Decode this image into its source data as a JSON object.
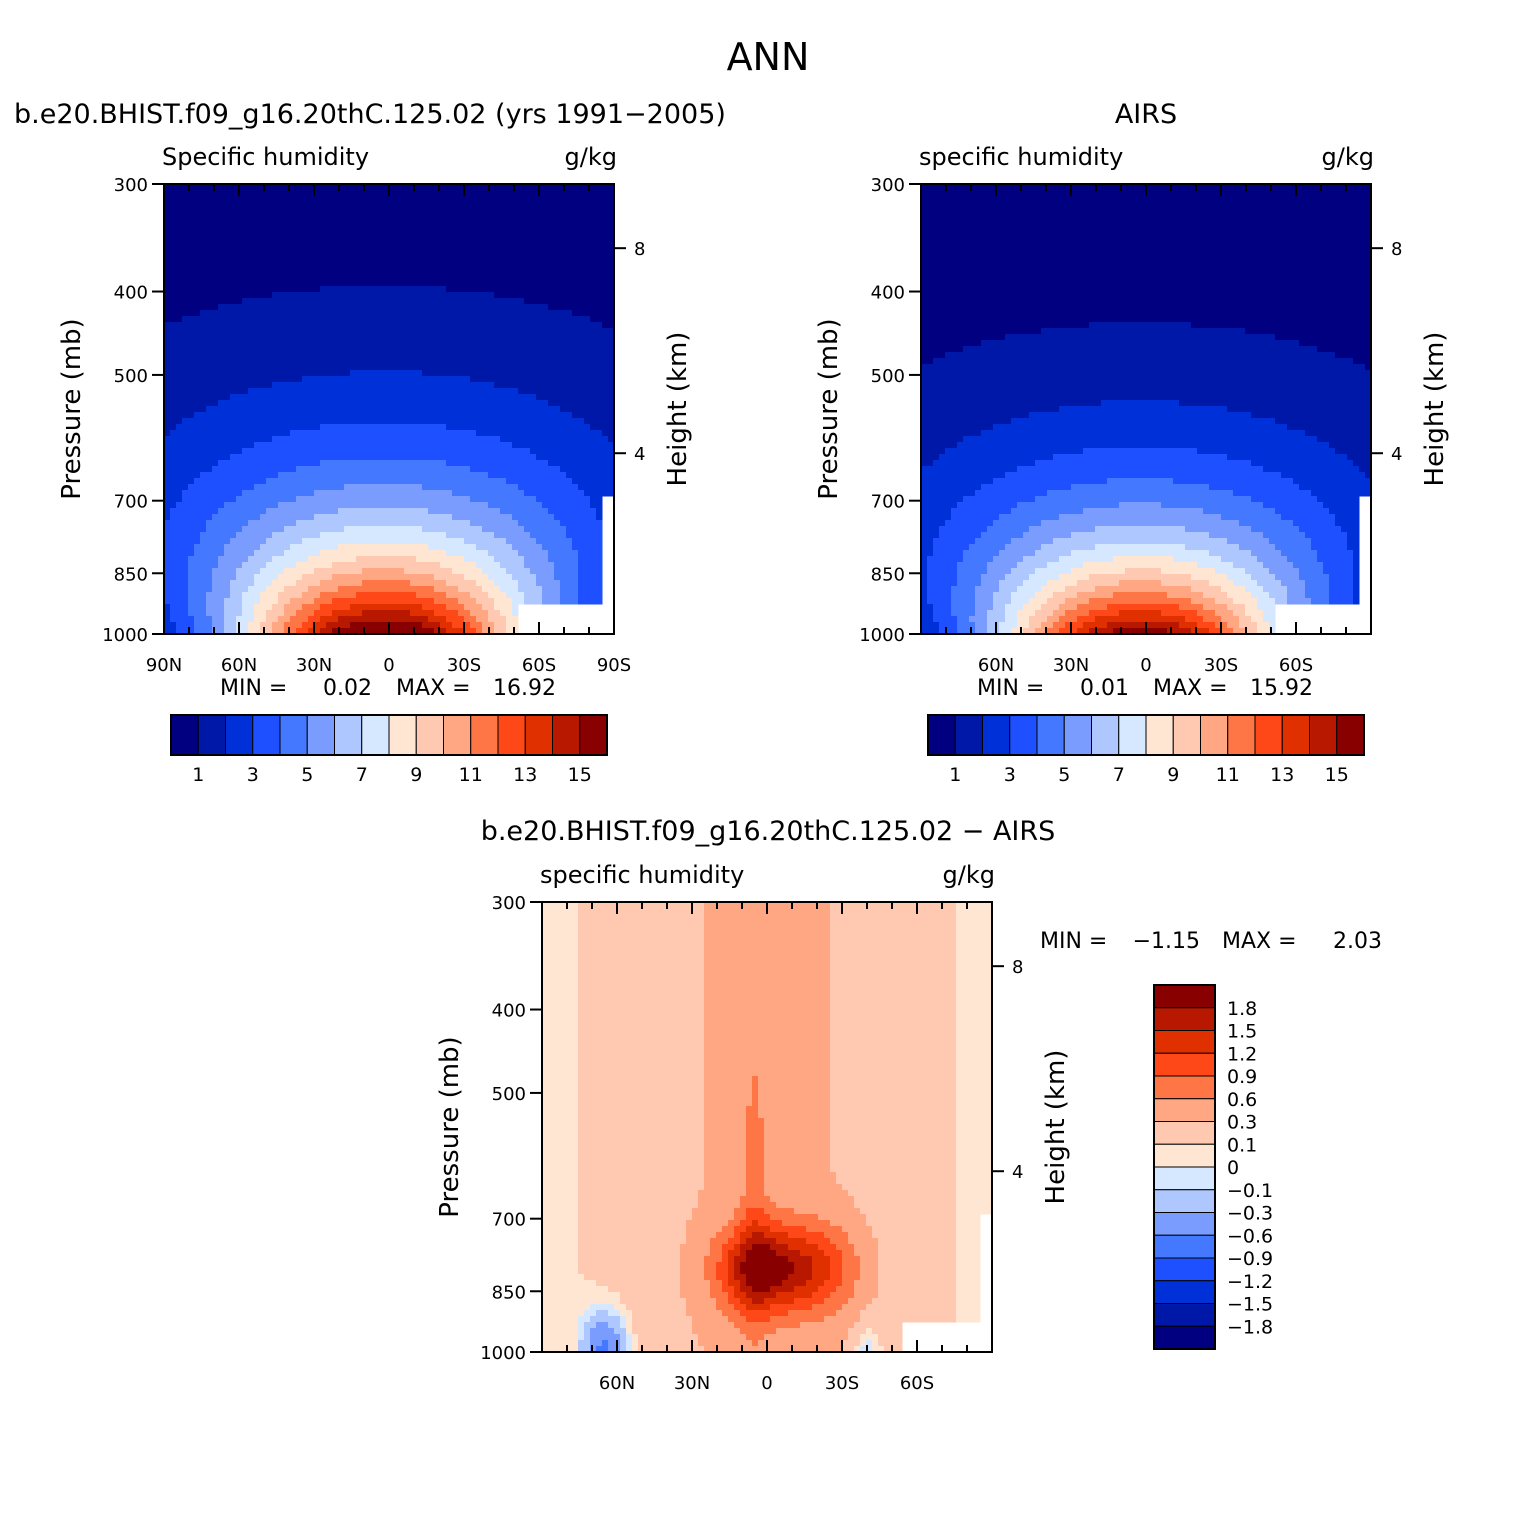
{
  "figure": {
    "title": "ANN"
  },
  "colors": {
    "abs_scale": [
      "#000080",
      "#0018a8",
      "#0030d8",
      "#1e50ff",
      "#4478ff",
      "#7a9cff",
      "#afc7ff",
      "#d6e8ff",
      "#ffe6d2",
      "#ffc8b0",
      "#ffa682",
      "#ff7646",
      "#ff4818",
      "#e03000",
      "#b81800",
      "#880000"
    ],
    "diff_scale": [
      "#000080",
      "#0018a8",
      "#0030d8",
      "#1e50ff",
      "#4478ff",
      "#7a9cff",
      "#afc7ff",
      "#d6e8ff",
      "#ffe6d2",
      "#ffc8b0",
      "#ffa682",
      "#ff7646",
      "#ff4818",
      "#e03000",
      "#b81800",
      "#880000"
    ]
  },
  "chart_data": [
    {
      "type": "heatmap",
      "title": "b.e20.BHIST.f09_g16.20thC.125.02 (yrs 1991−2005)",
      "variable": "Specific humidity",
      "units": "g/kg",
      "ylabel": "Pressure (mb)",
      "y2label": "Height (km)",
      "y_ticks": [
        "300",
        "400",
        "500",
        "700",
        "850",
        "1000"
      ],
      "y2_ticks": [
        "8",
        "4"
      ],
      "x_ticks": [
        "90N",
        "60N",
        "30N",
        "0",
        "30S",
        "60S",
        "90S"
      ],
      "stats": {
        "min_label": "MIN =",
        "min": "0.02",
        "max_label": "MAX =",
        "max": "16.92"
      },
      "colorbar_labels": [
        "1",
        "3",
        "5",
        "7",
        "9",
        "11",
        "13",
        "15"
      ],
      "ylim": [
        300,
        1000
      ],
      "xlim": [
        90,
        -90
      ],
      "field": {
        "peak": 16.92,
        "peak_lat": 2,
        "base_width": 44,
        "scale_height": 1.15
      }
    },
    {
      "type": "heatmap",
      "title": "AIRS",
      "variable": "specific humidity",
      "units": "g/kg",
      "ylabel": "Pressure (mb)",
      "y2label": "Height (km)",
      "y_ticks": [
        "300",
        "400",
        "500",
        "700",
        "850",
        "1000"
      ],
      "y2_ticks": [
        "8",
        "4"
      ],
      "x_ticks": [
        "60N",
        "30N",
        "0",
        "30S",
        "60S"
      ],
      "stats": {
        "min_label": "MIN =",
        "min": "0.01",
        "max_label": "MAX =",
        "max": "15.92"
      },
      "colorbar_labels": [
        "1",
        "3",
        "5",
        "7",
        "9",
        "11",
        "13",
        "15"
      ],
      "ylim": [
        300,
        1000
      ],
      "xlim": [
        90,
        -90
      ],
      "field": {
        "peak": 15.92,
        "peak_lat": 2,
        "base_width": 44,
        "scale_height": 1.05
      }
    },
    {
      "type": "heatmap",
      "title": "b.e20.BHIST.f09_g16.20thC.125.02 − AIRS",
      "variable": "specific humidity",
      "units": "g/kg",
      "ylabel": "Pressure (mb)",
      "y2label": "Height (km)",
      "y_ticks": [
        "300",
        "400",
        "500",
        "700",
        "850",
        "1000"
      ],
      "y2_ticks": [
        "8",
        "4"
      ],
      "x_ticks": [
        "60N",
        "30N",
        "0",
        "30S",
        "60S"
      ],
      "stats": {
        "min_label": "MIN =",
        "min": "−1.15",
        "max_label": "MAX =",
        "max": "2.03"
      },
      "colorbar_labels": [
        "1.8",
        "1.5",
        "1.2",
        "0.9",
        "0.6",
        "0.3",
        "0.1",
        "0",
        "−0.1",
        "−0.3",
        "−0.6",
        "−0.9",
        "−1.2",
        "−1.5",
        "−1.8"
      ],
      "ylim": [
        300,
        1000
      ],
      "xlim": [
        90,
        -90
      ]
    }
  ]
}
